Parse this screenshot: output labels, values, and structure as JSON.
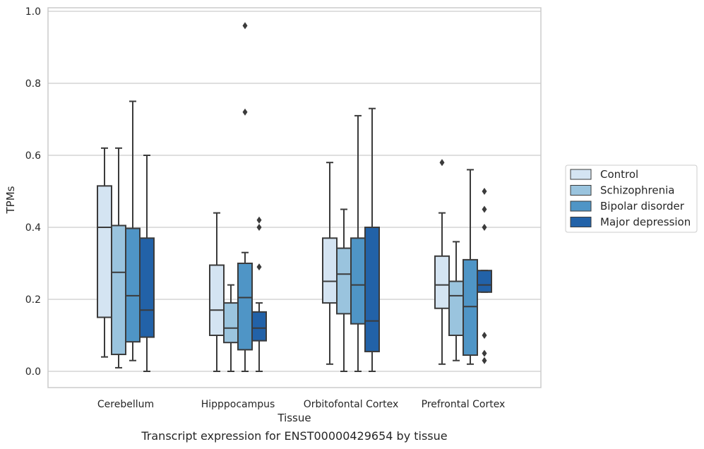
{
  "chart_data": {
    "type": "box",
    "title": "",
    "caption": "Transcript expression for ENST00000429654 by tissue",
    "xlabel": "Tissue",
    "ylabel": "TPMs",
    "ylim": [
      -0.045,
      1.01
    ],
    "yticks": [
      "0.0",
      "0.2",
      "0.4",
      "0.6",
      "0.8",
      "1.0"
    ],
    "ytick_values": [
      0.0,
      0.2,
      0.4,
      0.6,
      0.8,
      1.0
    ],
    "grid": true,
    "legend_position": "right",
    "categories": [
      "Cerebellum",
      "Hipppocampus",
      "Orbitofontal Cortex",
      "Prefrontal Cortex"
    ],
    "series": [
      {
        "name": "Control",
        "color": "#d4e4f2",
        "boxes": [
          {
            "min": 0.04,
            "q1": 0.15,
            "median": 0.4,
            "q3": 0.515,
            "max": 0.62,
            "outliers": []
          },
          {
            "min": 0.0,
            "q1": 0.1,
            "median": 0.17,
            "q3": 0.295,
            "max": 0.44,
            "outliers": []
          },
          {
            "min": 0.02,
            "q1": 0.19,
            "median": 0.25,
            "q3": 0.37,
            "max": 0.58,
            "outliers": []
          },
          {
            "min": 0.02,
            "q1": 0.175,
            "median": 0.24,
            "q3": 0.32,
            "max": 0.44,
            "outliers": [
              0.58
            ]
          }
        ]
      },
      {
        "name": "Schizophrenia",
        "color": "#9ac4de",
        "boxes": [
          {
            "min": 0.01,
            "q1": 0.047,
            "median": 0.275,
            "q3": 0.405,
            "max": 0.62,
            "outliers": []
          },
          {
            "min": 0.0,
            "q1": 0.08,
            "median": 0.12,
            "q3": 0.19,
            "max": 0.24,
            "outliers": []
          },
          {
            "min": 0.0,
            "q1": 0.16,
            "median": 0.27,
            "q3": 0.342,
            "max": 0.45,
            "outliers": []
          },
          {
            "min": 0.03,
            "q1": 0.1,
            "median": 0.21,
            "q3": 0.25,
            "max": 0.36,
            "outliers": []
          }
        ]
      },
      {
        "name": "Bipolar disorder",
        "color": "#4f95c6",
        "boxes": [
          {
            "min": 0.03,
            "q1": 0.082,
            "median": 0.21,
            "q3": 0.397,
            "max": 0.75,
            "outliers": []
          },
          {
            "min": 0.0,
            "q1": 0.06,
            "median": 0.205,
            "q3": 0.3,
            "max": 0.33,
            "outliers": [
              0.72,
              0.96
            ]
          },
          {
            "min": 0.0,
            "q1": 0.132,
            "median": 0.24,
            "q3": 0.37,
            "max": 0.71,
            "outliers": []
          },
          {
            "min": 0.02,
            "q1": 0.045,
            "median": 0.18,
            "q3": 0.31,
            "max": 0.56,
            "outliers": []
          }
        ]
      },
      {
        "name": "Major depression",
        "color": "#2262a8",
        "boxes": [
          {
            "min": 0.0,
            "q1": 0.095,
            "median": 0.17,
            "q3": 0.37,
            "max": 0.6,
            "outliers": []
          },
          {
            "min": 0.0,
            "q1": 0.085,
            "median": 0.12,
            "q3": 0.165,
            "max": 0.19,
            "outliers": [
              0.29,
              0.4,
              0.42
            ]
          },
          {
            "min": 0.0,
            "q1": 0.055,
            "median": 0.14,
            "q3": 0.4,
            "max": 0.73,
            "outliers": []
          },
          {
            "min": 0.22,
            "q1": 0.22,
            "median": 0.24,
            "q3": 0.28,
            "max": 0.28,
            "outliers": [
              0.03,
              0.05,
              0.1,
              0.4,
              0.45,
              0.5
            ]
          }
        ]
      }
    ]
  }
}
